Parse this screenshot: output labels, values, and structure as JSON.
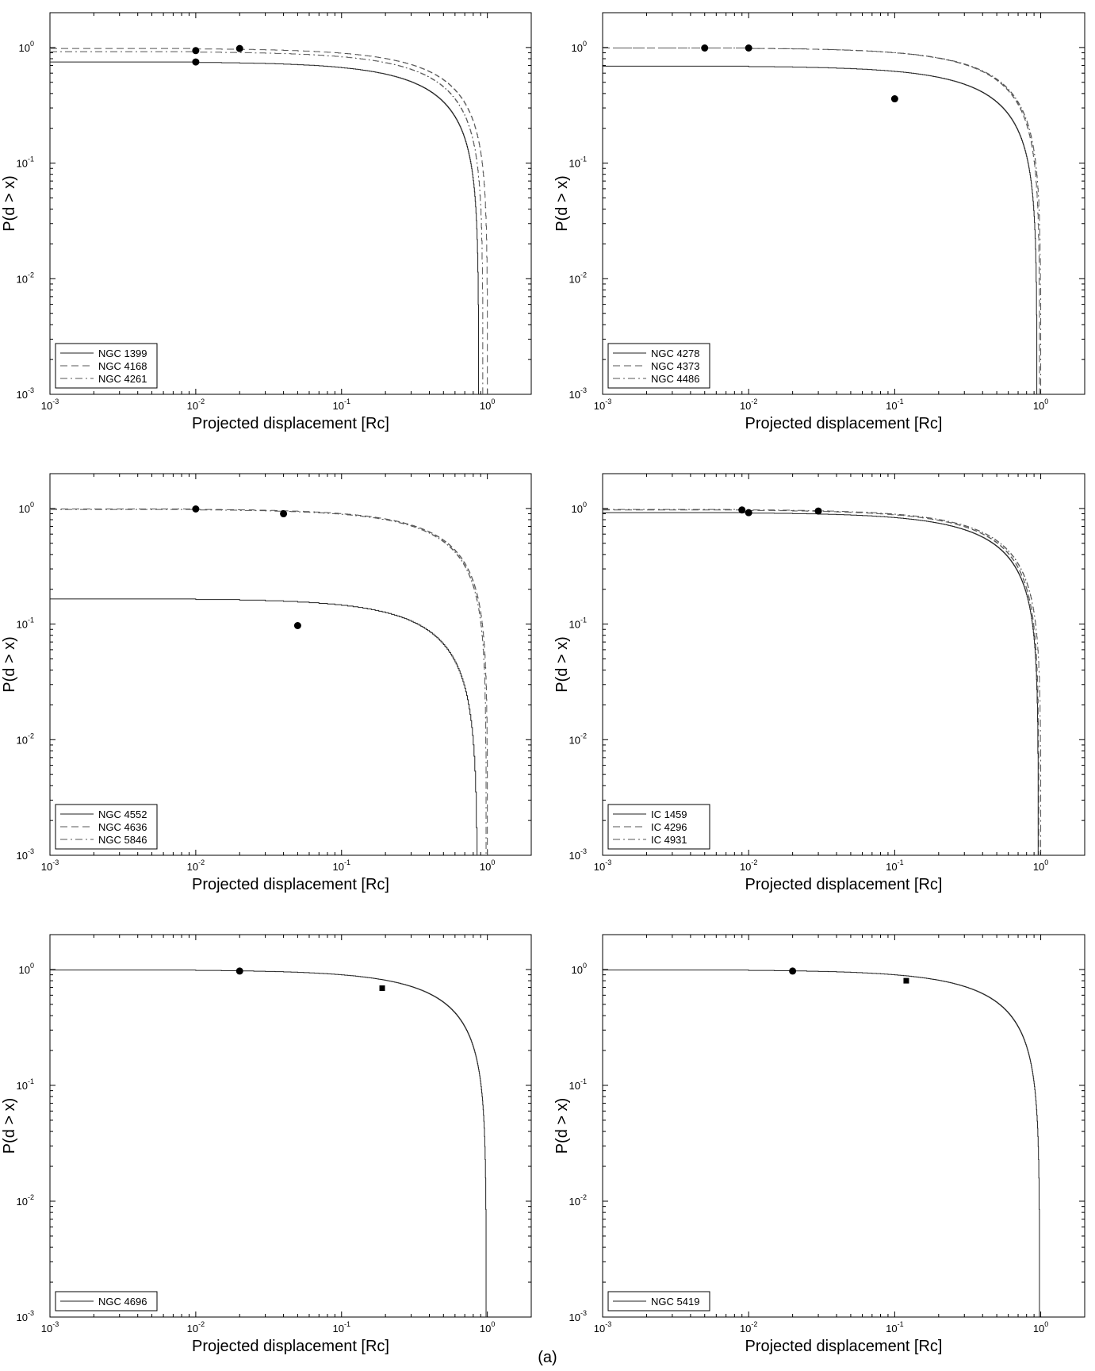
{
  "caption": "(a)",
  "chart_data": [
    {
      "type": "line",
      "xlabel": "Projected displacement [Rc]",
      "ylabel": "P(d > x)",
      "xscale": "log",
      "yscale": "log",
      "xlim": [
        0.001,
        2
      ],
      "ylim": [
        0.001,
        2
      ],
      "xticks": [
        0.001,
        0.01,
        0.1,
        1
      ],
      "yticks": [
        0.001,
        0.01,
        0.1,
        1
      ],
      "grid": false,
      "legend_position": "bottom-left",
      "series": [
        {
          "name": "NGC 1399",
          "style": "solid",
          "p0": 0.75,
          "cutoff": 0.87,
          "markers": [
            [
              0.01,
              0.75
            ]
          ]
        },
        {
          "name": "NGC 4168",
          "style": "dashed",
          "p0": 0.98,
          "cutoff": 1.0,
          "markers": [
            [
              0.02,
              0.98
            ]
          ]
        },
        {
          "name": "NGC 4261",
          "style": "dashdot",
          "p0": 0.92,
          "cutoff": 0.93,
          "markers": [
            [
              0.01,
              0.94
            ]
          ]
        }
      ]
    },
    {
      "type": "line",
      "xlabel": "Projected displacement [Rc]",
      "ylabel": "P(d > x)",
      "xscale": "log",
      "yscale": "log",
      "xlim": [
        0.001,
        2
      ],
      "ylim": [
        0.001,
        2
      ],
      "xticks": [
        0.001,
        0.01,
        0.1,
        1
      ],
      "yticks": [
        0.001,
        0.01,
        0.1,
        1
      ],
      "grid": false,
      "legend_position": "bottom-left",
      "series": [
        {
          "name": "NGC 4278",
          "style": "solid",
          "p0": 0.69,
          "cutoff": 0.94,
          "markers": [
            [
              0.1,
              0.36
            ]
          ]
        },
        {
          "name": "NGC 4373",
          "style": "dashed",
          "p0": 0.99,
          "cutoff": 0.98,
          "markers": [
            [
              0.005,
              0.99
            ]
          ]
        },
        {
          "name": "NGC 4486",
          "style": "dashdot",
          "p0": 0.99,
          "cutoff": 1.0,
          "markers": [
            [
              0.01,
              0.99
            ]
          ]
        }
      ]
    },
    {
      "type": "line",
      "xlabel": "Projected displacement [Rc]",
      "ylabel": "P(d > x)",
      "xscale": "log",
      "yscale": "log",
      "xlim": [
        0.001,
        2
      ],
      "ylim": [
        0.001,
        2
      ],
      "xticks": [
        0.001,
        0.01,
        0.1,
        1
      ],
      "yticks": [
        0.001,
        0.01,
        0.1,
        1
      ],
      "grid": false,
      "legend_position": "bottom-left",
      "series": [
        {
          "name": "NGC 4552",
          "style": "solid",
          "p0": 0.165,
          "cutoff": 0.85,
          "markers": [
            [
              0.05,
              0.097
            ]
          ]
        },
        {
          "name": "NGC 4636",
          "style": "dashed",
          "p0": 0.99,
          "cutoff": 1.0,
          "markers": [
            [
              0.01,
              0.99
            ]
          ]
        },
        {
          "name": "NGC 5846",
          "style": "dashdot",
          "p0": 0.98,
          "cutoff": 0.98,
          "markers": [
            [
              0.04,
              0.9
            ]
          ]
        }
      ]
    },
    {
      "type": "line",
      "xlabel": "Projected displacement [Rc]",
      "ylabel": "P(d > x)",
      "xscale": "log",
      "yscale": "log",
      "xlim": [
        0.001,
        2
      ],
      "ylim": [
        0.001,
        2
      ],
      "xticks": [
        0.001,
        0.01,
        0.1,
        1
      ],
      "yticks": [
        0.001,
        0.01,
        0.1,
        1
      ],
      "grid": false,
      "legend_position": "bottom-left",
      "series": [
        {
          "name": "IC 1459",
          "style": "solid",
          "p0": 0.92,
          "cutoff": 0.96,
          "markers": [
            [
              0.01,
              0.92
            ]
          ]
        },
        {
          "name": "IC 4296",
          "style": "dashed",
          "p0": 0.97,
          "cutoff": 0.97,
          "markers": [
            [
              0.009,
              0.97
            ]
          ]
        },
        {
          "name": "IC 4931",
          "style": "dashdot",
          "p0": 0.98,
          "cutoff": 1.0,
          "markers": [
            [
              0.03,
              0.95
            ]
          ]
        }
      ]
    },
    {
      "type": "line",
      "xlabel": "Projected displacement [Rc]",
      "ylabel": "P(d > x)",
      "xscale": "log",
      "yscale": "log",
      "xlim": [
        0.001,
        2
      ],
      "ylim": [
        0.001,
        2
      ],
      "xticks": [
        0.001,
        0.01,
        0.1,
        1
      ],
      "yticks": [
        0.001,
        0.01,
        0.1,
        1
      ],
      "grid": false,
      "legend_position": "bottom-left",
      "series": [
        {
          "name": "NGC 4696",
          "style": "solid",
          "p0": 0.99,
          "cutoff": 0.98,
          "markers": [
            [
              0.02,
              0.97
            ]
          ],
          "square_markers": [
            [
              0.19,
              0.69
            ]
          ]
        }
      ]
    },
    {
      "type": "line",
      "xlabel": "Projected displacement [Rc]",
      "ylabel": "P(d > x)",
      "xscale": "log",
      "yscale": "log",
      "xlim": [
        0.001,
        2
      ],
      "ylim": [
        0.001,
        2
      ],
      "xticks": [
        0.001,
        0.01,
        0.1,
        1
      ],
      "yticks": [
        0.001,
        0.01,
        0.1,
        1
      ],
      "grid": false,
      "legend_position": "bottom-left",
      "series": [
        {
          "name": "NGC 5419",
          "style": "solid",
          "p0": 0.99,
          "cutoff": 0.98,
          "markers": [
            [
              0.02,
              0.97
            ]
          ],
          "square_markers": [
            [
              0.12,
              0.8
            ]
          ]
        }
      ]
    }
  ]
}
